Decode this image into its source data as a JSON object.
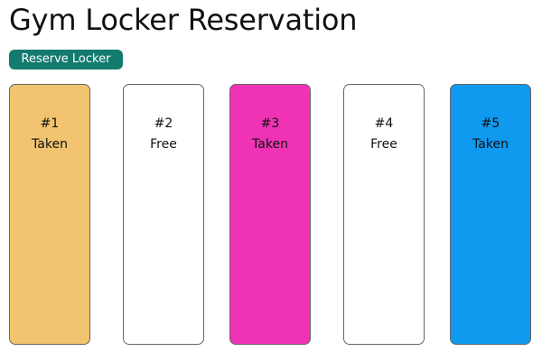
{
  "header": {
    "title": "Gym Locker Reservation"
  },
  "toolbar": {
    "reserve_label": "Reserve Locker",
    "reserve_color": "#137a6e"
  },
  "lockers": [
    {
      "number": "#1",
      "status": "Taken",
      "color": "#f2c46f"
    },
    {
      "number": "#2",
      "status": "Free",
      "color": "#ffffff"
    },
    {
      "number": "#3",
      "status": "Taken",
      "color": "#f033b5"
    },
    {
      "number": "#4",
      "status": "Free",
      "color": "#ffffff"
    },
    {
      "number": "#5",
      "status": "Taken",
      "color": "#0f9aef"
    }
  ]
}
